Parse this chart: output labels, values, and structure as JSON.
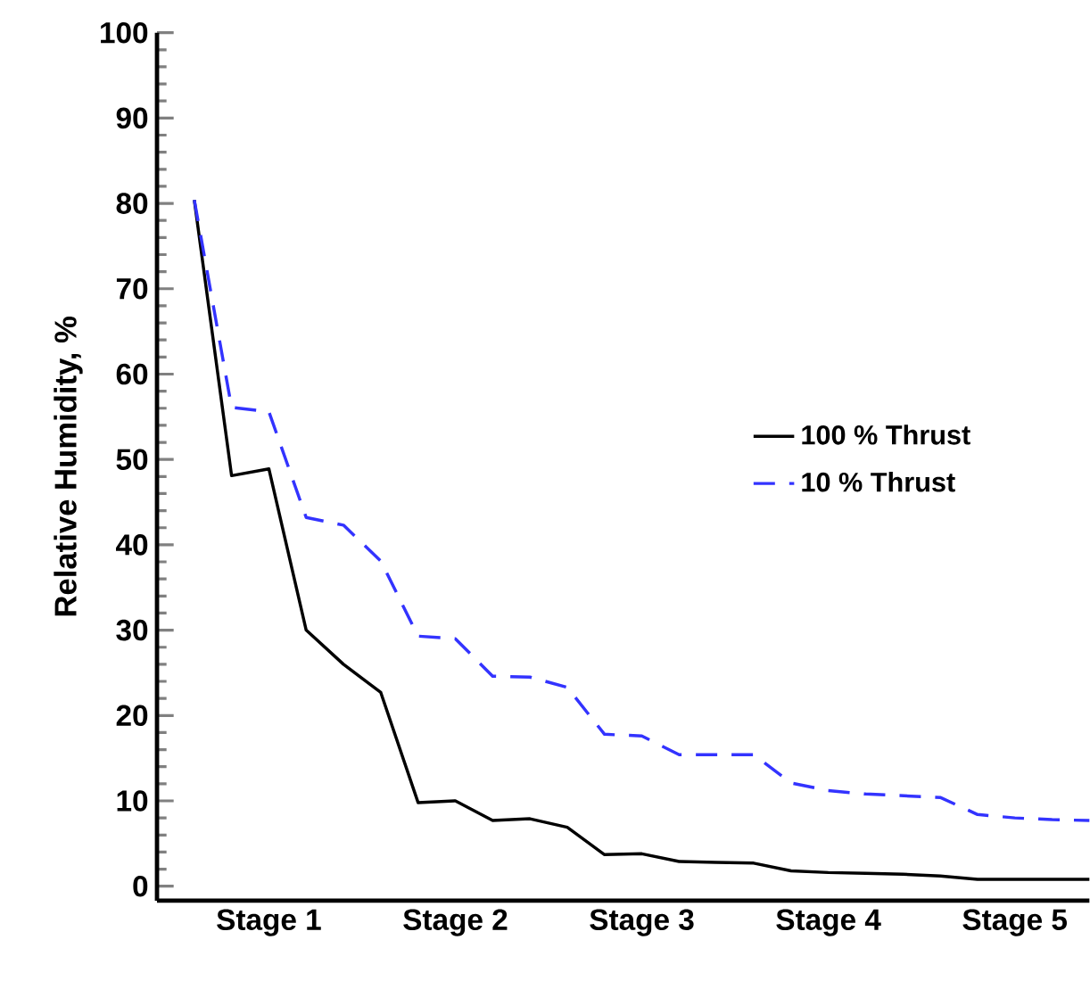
{
  "chart_data": {
    "type": "line",
    "ylabel": "Relative Humidity, %",
    "ylim": [
      -1.7,
      100
    ],
    "categories": [
      null,
      null,
      "Stage 1",
      null,
      null,
      null,
      null,
      "Stage 2",
      null,
      null,
      null,
      null,
      "Stage 3",
      null,
      null,
      null,
      null,
      "Stage 4",
      null,
      null,
      null,
      null,
      "Stage 5",
      null,
      null
    ],
    "yticks": [
      0,
      10,
      20,
      30,
      40,
      50,
      60,
      70,
      80,
      90,
      100
    ],
    "legend": "right",
    "marker": "none",
    "series": [
      {
        "name": "100 %  Thrust",
        "color": "#000000",
        "line_style": "solid",
        "values": [
          80.4,
          48.1,
          48.9,
          30.0,
          26.0,
          22.7,
          9.8,
          10.0,
          7.7,
          7.9,
          6.9,
          3.7,
          3.8,
          2.9,
          2.8,
          2.7,
          1.8,
          1.6,
          1.5,
          1.4,
          1.2,
          0.8,
          0.8,
          0.8,
          0.8
        ]
      },
      {
        "name": "10 %  Thrust",
        "color": "#3333ff",
        "line_style": "dashed",
        "values": [
          80.4,
          56.1,
          55.6,
          43.2,
          42.3,
          38.1,
          29.3,
          29.0,
          24.6,
          24.5,
          23.3,
          17.8,
          17.6,
          15.4,
          15.4,
          15.4,
          12.1,
          11.2,
          10.8,
          10.6,
          10.4,
          8.4,
          8.0,
          7.8,
          7.7
        ]
      }
    ]
  }
}
